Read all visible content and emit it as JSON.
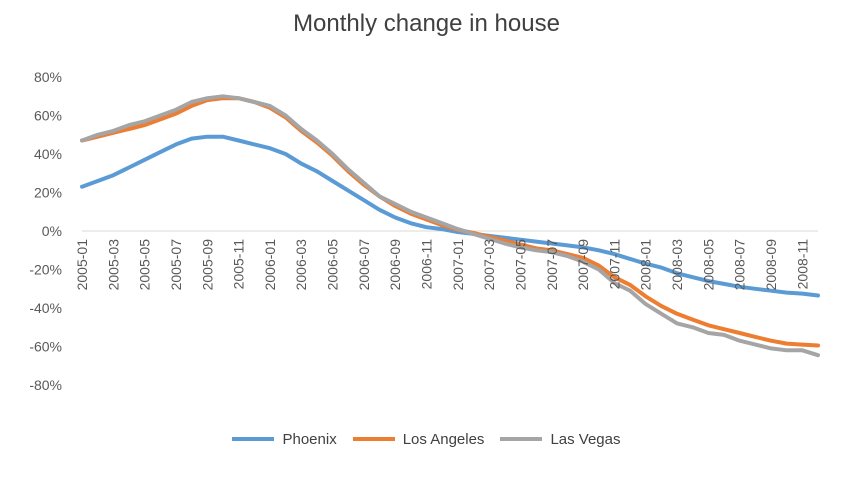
{
  "chart_data": {
    "type": "line",
    "title": "Monthly change in house",
    "ylim": [
      -0.8,
      0.8
    ],
    "yticks": [
      -0.8,
      -0.6,
      -0.4,
      -0.2,
      0,
      0.2,
      0.4,
      0.6,
      0.8
    ],
    "ytick_labels": [
      "-80%",
      "-60%",
      "-40%",
      "-20%",
      "0%",
      "20%",
      "40%",
      "60%",
      "80%"
    ],
    "grid": false,
    "legend_position": "bottom",
    "x": [
      "2005-01",
      "2005-02",
      "2005-03",
      "2005-04",
      "2005-05",
      "2005-06",
      "2005-07",
      "2005-08",
      "2005-09",
      "2005-10",
      "2005-11",
      "2005-12",
      "2006-01",
      "2006-02",
      "2006-03",
      "2006-04",
      "2006-05",
      "2006-06",
      "2006-07",
      "2006-08",
      "2006-09",
      "2006-10",
      "2006-11",
      "2006-12",
      "2007-01",
      "2007-02",
      "2007-03",
      "2007-04",
      "2007-05",
      "2007-06",
      "2007-07",
      "2007-08",
      "2007-09",
      "2007-10",
      "2007-11",
      "2007-12",
      "2008-01",
      "2008-02",
      "2008-03",
      "2008-04",
      "2008-05",
      "2008-06",
      "2008-07",
      "2008-08",
      "2008-09",
      "2008-10",
      "2008-11",
      "2008-12"
    ],
    "x_tick_labels": [
      "2005-01",
      "2005-03",
      "2005-05",
      "2005-07",
      "2005-09",
      "2005-11",
      "2006-01",
      "2006-03",
      "2006-05",
      "2006-07",
      "2006-09",
      "2006-11",
      "2007-01",
      "2007-03",
      "2007-05",
      "2007-07",
      "2007-09",
      "2007-11",
      "2008-01",
      "2008-03",
      "2008-05",
      "2008-07",
      "2008-09",
      "2008-11"
    ],
    "series": [
      {
        "name": "Phoenix",
        "color": "#5b9bd5",
        "values": [
          0.23,
          0.26,
          0.29,
          0.33,
          0.37,
          0.41,
          0.45,
          0.48,
          0.49,
          0.49,
          0.47,
          0.45,
          0.43,
          0.4,
          0.35,
          0.31,
          0.26,
          0.21,
          0.16,
          0.11,
          0.07,
          0.04,
          0.02,
          0.01,
          -0.005,
          -0.015,
          -0.025,
          -0.035,
          -0.045,
          -0.055,
          -0.065,
          -0.075,
          -0.085,
          -0.1,
          -0.12,
          -0.145,
          -0.17,
          -0.19,
          -0.22,
          -0.24,
          -0.26,
          -0.275,
          -0.29,
          -0.3,
          -0.31,
          -0.32,
          -0.325,
          -0.335
        ]
      },
      {
        "name": "Los Angeles",
        "color": "#ed7d31",
        "values": [
          0.47,
          0.49,
          0.51,
          0.53,
          0.55,
          0.58,
          0.61,
          0.65,
          0.68,
          0.69,
          0.69,
          0.67,
          0.64,
          0.59,
          0.52,
          0.46,
          0.39,
          0.31,
          0.24,
          0.18,
          0.13,
          0.09,
          0.06,
          0.03,
          0.005,
          -0.01,
          -0.03,
          -0.05,
          -0.07,
          -0.09,
          -0.1,
          -0.12,
          -0.14,
          -0.18,
          -0.24,
          -0.28,
          -0.34,
          -0.39,
          -0.43,
          -0.46,
          -0.49,
          -0.51,
          -0.53,
          -0.55,
          -0.57,
          -0.585,
          -0.59,
          -0.595
        ]
      },
      {
        "name": "Las Vegas",
        "color": "#a5a5a5",
        "values": [
          0.47,
          0.5,
          0.52,
          0.55,
          0.57,
          0.6,
          0.63,
          0.67,
          0.69,
          0.7,
          0.69,
          0.67,
          0.65,
          0.6,
          0.53,
          0.47,
          0.4,
          0.32,
          0.25,
          0.18,
          0.14,
          0.1,
          0.07,
          0.04,
          0.01,
          -0.015,
          -0.04,
          -0.065,
          -0.085,
          -0.1,
          -0.11,
          -0.13,
          -0.16,
          -0.2,
          -0.27,
          -0.31,
          -0.38,
          -0.43,
          -0.48,
          -0.5,
          -0.53,
          -0.54,
          -0.57,
          -0.59,
          -0.61,
          -0.62,
          -0.62,
          -0.645
        ]
      }
    ]
  }
}
